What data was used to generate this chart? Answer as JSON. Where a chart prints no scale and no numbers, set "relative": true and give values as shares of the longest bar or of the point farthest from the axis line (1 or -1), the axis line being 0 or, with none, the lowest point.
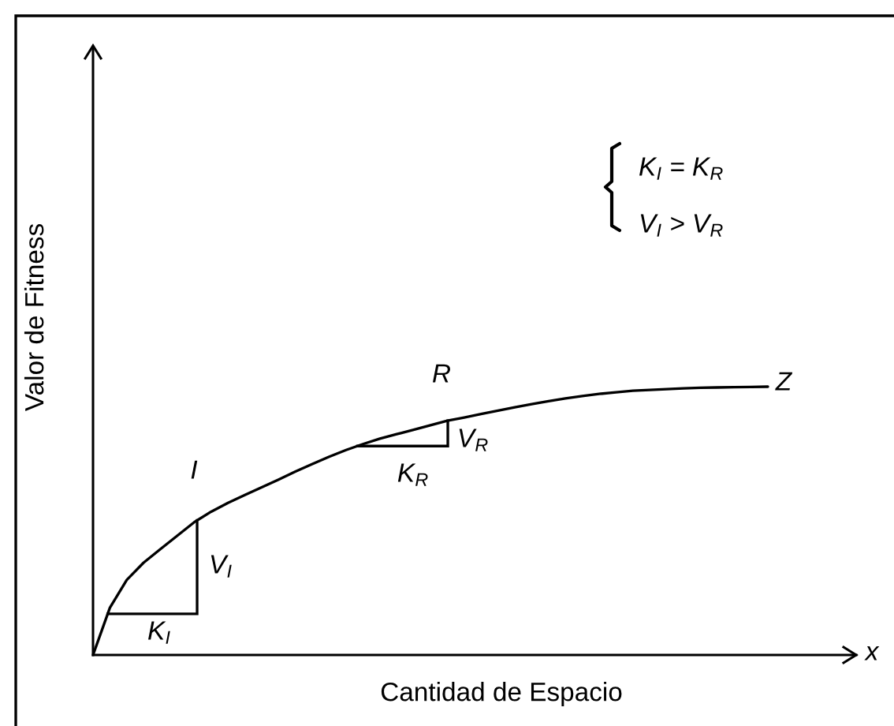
{
  "chart_data": {
    "type": "line",
    "relative": true,
    "xlabel": "Cantidad de Espacio",
    "ylabel": "Valor de Fitness",
    "categories": [
      null,
      null,
      null,
      null,
      null,
      null,
      null,
      null,
      null,
      null,
      null,
      null,
      null,
      null,
      null,
      null,
      null,
      null,
      null,
      null,
      null,
      null,
      null,
      null,
      null,
      null,
      null,
      null,
      null,
      null,
      null,
      null,
      null,
      null,
      null,
      null,
      null,
      null,
      null,
      null,
      null
    ],
    "series": [
      {
        "color": "#000000",
        "values": [
          0,
          0.176,
          0.28,
          0.344,
          0.395,
          0.445,
          0.495,
          0.534,
          0.567,
          0.596,
          0.625,
          0.654,
          0.684,
          0.712,
          0.739,
          0.764,
          0.786,
          0.806,
          0.823,
          0.839,
          0.856,
          0.873,
          0.885,
          0.898,
          0.911,
          0.923,
          0.935,
          0.946,
          0.956,
          0.965,
          0.973,
          0.979,
          0.985,
          0.988,
          0.991,
          0.994,
          0.996,
          0.997,
          0.998,
          0.999,
          1.0
        ]
      }
    ],
    "annotations": [
      "I",
      "R",
      "Z",
      "V$_{I}$",
      "K$_{I}$",
      "V$_{R}$",
      "K$_{R}$",
      "K$_{I}$ = K$_{R}$",
      "V$_{I}$ > V$_{R}$",
      "x"
    ]
  }
}
